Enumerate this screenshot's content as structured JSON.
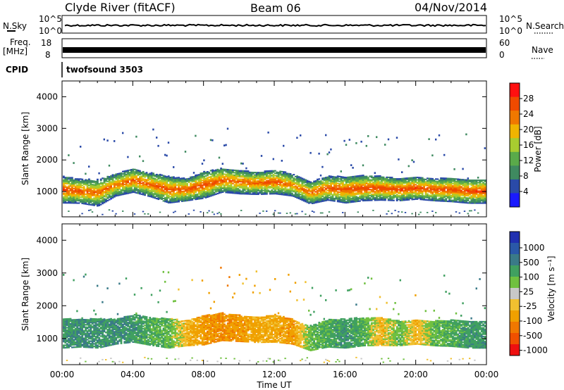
{
  "header": {
    "station": "Clyde River (fitACF)",
    "beam": "Beam 06",
    "date": "04/Nov/2014"
  },
  "top_panels": {
    "nsky_label": "N.Sky",
    "nsky_ticks": [
      "10^5",
      "10^0"
    ],
    "nsearch_label": "N.Search",
    "nsearch_ticks": [
      "10^5",
      "10^0"
    ],
    "freq_label": "Freq.",
    "freq_unit": "[MHz]",
    "freq_ticks": [
      "18",
      "8"
    ],
    "nave_label": "Nave",
    "nave_ticks": [
      "60",
      "0"
    ],
    "cpid_label": "CPID",
    "cpid_value": "twofsound 3503"
  },
  "colors": {
    "power_scale": [
      "#1a1aff",
      "#2a4aa8",
      "#3f8a60",
      "#5aaa4a",
      "#a8cc30",
      "#f0b400",
      "#f07800",
      "#f04a00",
      "#ff1010"
    ],
    "velocity_scale": [
      "#ee1010",
      "#f05000",
      "#f07800",
      "#f0a000",
      "#f0c030",
      "#c8c8c8",
      "#70c040",
      "#40a060",
      "#3a7a88",
      "#2a58a8",
      "#2030b0"
    ]
  },
  "chart_data": [
    {
      "type": "heatmap",
      "name": "power",
      "xlabel": "",
      "ylabel": "Slant Range [km]",
      "ylim": [
        200,
        4500
      ],
      "xlim": [
        0,
        24
      ],
      "x_ticks": [
        "00:00",
        "04:00",
        "08:00",
        "12:00",
        "16:00",
        "20:00",
        "00:00"
      ],
      "y_ticks": [
        1000,
        2000,
        3000,
        4000
      ],
      "colorbar_label": "Power [dB]",
      "colorbar_ticks": [
        4,
        8,
        12,
        16,
        20,
        24,
        28
      ],
      "colorbar_range": [
        0,
        32
      ],
      "band": {
        "hours": [
          0,
          1,
          2,
          3,
          4,
          5,
          6,
          7,
          8,
          9,
          10,
          11,
          12,
          13,
          14,
          15,
          16,
          17,
          18,
          19,
          20,
          21,
          22,
          23,
          24
        ],
        "center_km": [
          1050,
          1000,
          950,
          1200,
          1350,
          1200,
          1050,
          1050,
          1200,
          1350,
          1300,
          1250,
          1300,
          1200,
          950,
          1100,
          1050,
          1100,
          1100,
          1050,
          1100,
          1050,
          1050,
          1000,
          1000
        ],
        "halfwidth_km": [
          420,
          380,
          420,
          350,
          380,
          380,
          420,
          350,
          420,
          380,
          380,
          350,
          380,
          350,
          350,
          380,
          420,
          400,
          380,
          350,
          350,
          350,
          380,
          380,
          380
        ],
        "peak_power_db": [
          29,
          28,
          26,
          26,
          27,
          27,
          28,
          28,
          29,
          27,
          26,
          27,
          28,
          24,
          26,
          28,
          28,
          29,
          29,
          29,
          29,
          29,
          28,
          29,
          29
        ]
      }
    },
    {
      "type": "heatmap",
      "name": "velocity",
      "xlabel": "Time UT",
      "ylabel": "Slant Range [km]",
      "ylim": [
        200,
        4500
      ],
      "xlim": [
        0,
        24
      ],
      "x_ticks": [
        "00:00",
        "04:00",
        "08:00",
        "12:00",
        "16:00",
        "20:00",
        "00:00"
      ],
      "y_ticks": [
        1000,
        2000,
        3000,
        4000
      ],
      "colorbar_label": "Velocity [m s⁻¹]",
      "colorbar_ticks": [
        "1000",
        "500",
        "100",
        "25",
        "-25",
        "-100",
        "-500",
        "-1000"
      ],
      "band": {
        "hours": [
          0,
          1,
          2,
          3,
          4,
          5,
          6,
          7,
          8,
          9,
          10,
          11,
          12,
          13,
          14,
          15,
          16,
          17,
          18,
          19,
          20,
          21,
          22,
          23,
          24
        ],
        "center_km": [
          1150,
          1150,
          1150,
          1200,
          1300,
          1200,
          1150,
          1150,
          1250,
          1350,
          1300,
          1250,
          1300,
          1200,
          1000,
          1150,
          1150,
          1200,
          1200,
          1150,
          1200,
          1150,
          1150,
          1100,
          1100
        ],
        "halfwidth_km": [
          450,
          420,
          450,
          380,
          420,
          420,
          450,
          380,
          450,
          420,
          400,
          380,
          420,
          380,
          380,
          420,
          450,
          430,
          420,
          380,
          380,
          380,
          400,
          400,
          400
        ],
        "velocity_ms": [
          200,
          250,
          200,
          250,
          200,
          150,
          100,
          -100,
          -200,
          -250,
          -200,
          -150,
          -150,
          -200,
          100,
          150,
          200,
          150,
          -100,
          100,
          -100,
          100,
          150,
          200,
          200
        ]
      }
    }
  ]
}
